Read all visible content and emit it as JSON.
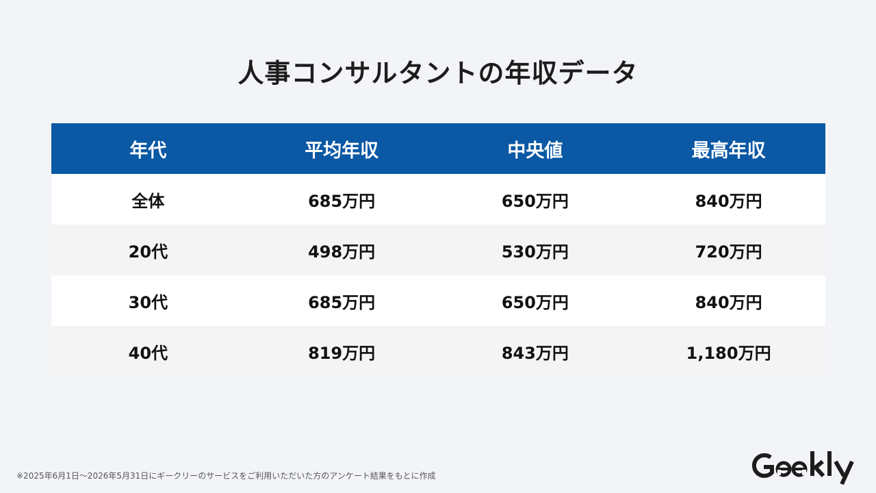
{
  "title": "人事コンサルタントの年収データ",
  "chart_data": {
    "type": "table",
    "columns": [
      "年代",
      "平均年収",
      "中央値",
      "最高年収"
    ],
    "rows": [
      [
        "全体",
        "685万円",
        "650万円",
        "840万円"
      ],
      [
        "20代",
        "498万円",
        "530万円",
        "720万円"
      ],
      [
        "30代",
        "685万円",
        "650万円",
        "840万円"
      ],
      [
        "40代",
        "819万円",
        "843万円",
        "1,180万円"
      ]
    ]
  },
  "footnote": "※2025年6月1日～2026年5月31日にギークリーのサービスをご利用いただいた方のアンケート結果をもとに作成",
  "logo": {
    "text": "Geekly"
  },
  "colors": {
    "background": "#f2f4f8",
    "header": "#0b58a4",
    "row_white": "#ffffff",
    "row_gray": "#f4f4f4",
    "text": "#1c1c1c"
  }
}
